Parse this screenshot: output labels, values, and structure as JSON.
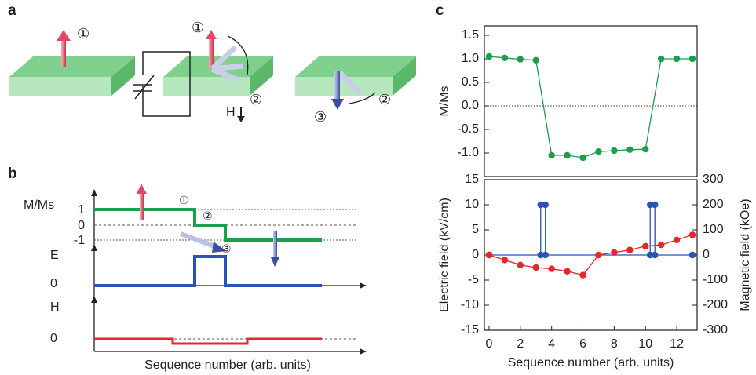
{
  "panel_labels": [
    "a",
    "b",
    "c"
  ],
  "panel_a": {
    "labels": [
      "①",
      "①",
      "②",
      "H",
      "②",
      "③"
    ]
  },
  "panel_b": {
    "m_label": "M/Ms",
    "m_levels": [
      "1",
      "0",
      "-1"
    ],
    "e_label": "E",
    "e_zero": "0",
    "h_label": "H",
    "h_zero": "0",
    "x_label": "Sequence number (arb. units)",
    "steps": [
      "①",
      "②",
      "③"
    ]
  },
  "chart_data": [
    {
      "type": "line",
      "ylabel": "M/Ms",
      "xlim": [
        -0.3,
        13.3
      ],
      "ylim": [
        -1.5,
        1.7
      ],
      "yticks": [
        {
          "value": 1.5,
          "label": "1.5"
        },
        {
          "value": 1,
          "label": "1.0"
        },
        {
          "value": 0.5,
          "label": "0.5"
        },
        {
          "value": 0,
          "label": "0.0"
        },
        {
          "value": -0.5,
          "label": "-0.5"
        },
        {
          "value": -1,
          "label": "-1.0"
        }
      ],
      "series": [
        {
          "color": "#1aa04a",
          "x": [
            0,
            1,
            2,
            3,
            4,
            5,
            6,
            7,
            8,
            9,
            10,
            11,
            12,
            13
          ],
          "values": [
            1.05,
            1.02,
            0.99,
            0.97,
            -1.05,
            -1.05,
            -1.1,
            -0.97,
            -0.95,
            -0.93,
            -0.92,
            1.0,
            1.0,
            1.0
          ]
        }
      ]
    },
    {
      "type": "line",
      "xlabel": "Sequence number (arb. units)",
      "ylabel": "Electric field  (kV/cm)",
      "y2label": "Magnetic field  (kOe)",
      "xlim": [
        -0.3,
        13.3
      ],
      "ylim": [
        -15,
        15
      ],
      "y2lim": [
        -300,
        300
      ],
      "xticks": [
        0,
        2,
        4,
        6,
        8,
        10,
        12
      ],
      "yticks": [
        15,
        10,
        5,
        0,
        -5,
        -10,
        -15
      ],
      "y2ticks": [
        300,
        200,
        100,
        0,
        -100,
        -200,
        -300
      ],
      "series": [
        {
          "color": "#2a52b8",
          "x": [
            0,
            3.3,
            3.3,
            3.6,
            3.6,
            10.3,
            10.3,
            10.6,
            10.6,
            13
          ],
          "values": [
            0,
            0,
            10,
            10,
            0,
            0,
            10,
            10,
            0,
            0
          ]
        },
        {
          "color": "#e8262b",
          "axis": "y2",
          "x": [
            0,
            1,
            2,
            3,
            4,
            5,
            6,
            7,
            8,
            9,
            10,
            11,
            12,
            13
          ],
          "values": [
            0,
            -20,
            -40,
            -50,
            -55,
            -65,
            -80,
            0,
            10,
            20,
            35,
            40,
            60,
            80
          ]
        }
      ]
    }
  ]
}
